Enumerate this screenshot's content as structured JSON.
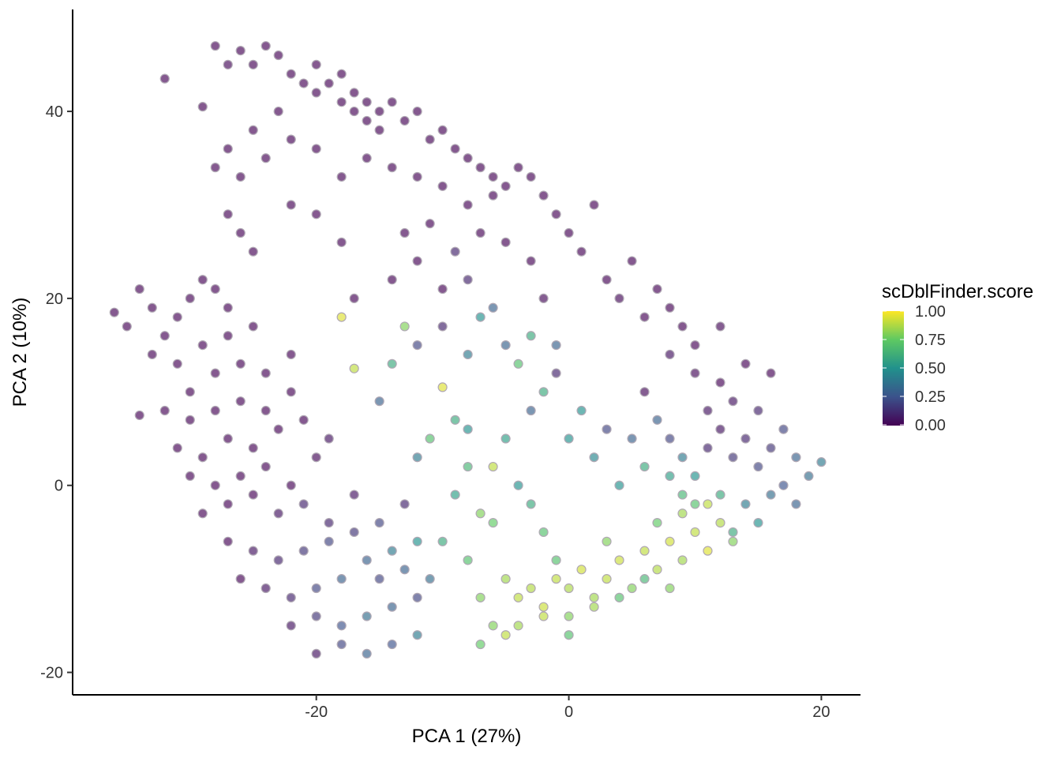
{
  "chart_data": {
    "type": "scatter",
    "xlabel": "PCA 1 (27%)",
    "ylabel": "PCA 2 (10%)",
    "xlim": [
      -39.3,
      23.1
    ],
    "ylim": [
      -22.4,
      50.9
    ],
    "x_ticks": [
      "-20",
      "0",
      "20"
    ],
    "x_tick_values": [
      -20,
      0,
      20
    ],
    "y_ticks": [
      "-20",
      "0",
      "20",
      "40"
    ],
    "y_tick_values": [
      -20,
      0,
      20,
      40
    ],
    "grid": false,
    "color_scale": "viridis",
    "legend": {
      "title": "scDblFinder.score",
      "placement": "right",
      "ticks": [
        "0.00",
        "0.25",
        "0.50",
        "0.75",
        "1.00"
      ],
      "tick_values": [
        0,
        0.25,
        0.5,
        0.75,
        1
      ],
      "range": [
        0,
        1
      ]
    },
    "point_fields": [
      "pca1",
      "pca2",
      "scDblFinder.score"
    ],
    "points": [
      [
        -32,
        43.5,
        0
      ],
      [
        -29,
        40.5,
        0
      ],
      [
        -28,
        47,
        0
      ],
      [
        -27,
        45,
        0.02
      ],
      [
        -26,
        46.5,
        0
      ],
      [
        -25,
        45,
        0
      ],
      [
        -24,
        47,
        0
      ],
      [
        -23,
        46,
        0
      ],
      [
        -22,
        44,
        0
      ],
      [
        -21,
        43,
        0
      ],
      [
        -20,
        45,
        0
      ],
      [
        -20,
        42,
        0
      ],
      [
        -19,
        43,
        0
      ],
      [
        -18,
        44,
        0
      ],
      [
        -18,
        41,
        0
      ],
      [
        -17,
        42,
        0
      ],
      [
        -17,
        40,
        0
      ],
      [
        -16,
        41,
        0
      ],
      [
        -16,
        39,
        0
      ],
      [
        -15,
        40,
        0
      ],
      [
        -14,
        41,
        0
      ],
      [
        -15,
        38,
        0
      ],
      [
        -13,
        39,
        0
      ],
      [
        -12,
        40,
        0
      ],
      [
        -11,
        37,
        0
      ],
      [
        -10,
        38,
        0
      ],
      [
        -9,
        36,
        0
      ],
      [
        -8,
        35,
        0
      ],
      [
        -7,
        34,
        0
      ],
      [
        -6,
        33,
        0
      ],
      [
        -5,
        32,
        0
      ],
      [
        -4,
        34,
        0
      ],
      [
        -3,
        33,
        0
      ],
      [
        -2,
        31,
        0
      ],
      [
        -1,
        29,
        0
      ],
      [
        0,
        27,
        0
      ],
      [
        1,
        25,
        0
      ],
      [
        2,
        30,
        0
      ],
      [
        -23,
        40,
        0
      ],
      [
        -25,
        38,
        0
      ],
      [
        -27,
        36,
        0
      ],
      [
        -28,
        34,
        0
      ],
      [
        -26,
        33,
        0
      ],
      [
        -24,
        35,
        0
      ],
      [
        -22,
        37,
        0
      ],
      [
        -20,
        36,
        0
      ],
      [
        -18,
        33,
        0
      ],
      [
        -16,
        35,
        0
      ],
      [
        -14,
        34,
        0
      ],
      [
        -12,
        33,
        0
      ],
      [
        -10,
        32,
        0
      ],
      [
        -8,
        30,
        0
      ],
      [
        -6,
        31,
        0
      ],
      [
        -27,
        29,
        0
      ],
      [
        -26,
        27,
        0
      ],
      [
        -25,
        25,
        0
      ],
      [
        -22,
        30,
        0
      ],
      [
        -20,
        29,
        0
      ],
      [
        -18,
        26,
        0
      ],
      [
        -13,
        27,
        0
      ],
      [
        -11,
        28,
        0
      ],
      [
        -9,
        25,
        0.1
      ],
      [
        -7,
        27,
        0
      ],
      [
        -5,
        26,
        0
      ],
      [
        -3,
        24,
        0
      ],
      [
        -14,
        22,
        0
      ],
      [
        -12,
        24,
        0
      ],
      [
        -17,
        20,
        0
      ],
      [
        -10,
        21,
        0
      ],
      [
        3,
        22,
        0
      ],
      [
        5,
        24,
        0
      ],
      [
        7,
        21,
        0
      ],
      [
        8,
        19,
        0
      ],
      [
        6,
        18,
        0
      ],
      [
        9,
        17,
        0
      ],
      [
        4,
        20,
        0.02
      ],
      [
        -2,
        20,
        0.02
      ],
      [
        -8,
        22,
        0.1
      ],
      [
        -6,
        19,
        0.3
      ],
      [
        -36,
        18.5,
        0
      ],
      [
        -35,
        17,
        0
      ],
      [
        -34,
        21,
        0
      ],
      [
        -33,
        19,
        0
      ],
      [
        -32,
        16,
        0
      ],
      [
        -31,
        18,
        0
      ],
      [
        -30,
        20,
        0
      ],
      [
        -29,
        22,
        0
      ],
      [
        -28,
        21,
        0
      ],
      [
        -27,
        19,
        0
      ],
      [
        -33,
        14,
        0
      ],
      [
        -31,
        13,
        0
      ],
      [
        -29,
        15,
        0
      ],
      [
        -27,
        16,
        0
      ],
      [
        -25,
        17,
        0
      ],
      [
        -30,
        10,
        0
      ],
      [
        -28,
        12,
        0
      ],
      [
        -26,
        13,
        0
      ],
      [
        -24,
        12,
        0
      ],
      [
        -22,
        14,
        0
      ],
      [
        -32,
        8,
        0
      ],
      [
        -30,
        7,
        0
      ],
      [
        -28,
        8,
        0
      ],
      [
        -26,
        9,
        0
      ],
      [
        -24,
        8,
        0
      ],
      [
        -22,
        10,
        0
      ],
      [
        -34,
        7.5,
        0
      ],
      [
        -31,
        4,
        0
      ],
      [
        -29,
        3,
        0
      ],
      [
        -27,
        5,
        0
      ],
      [
        -25,
        4,
        0
      ],
      [
        -23,
        6,
        0
      ],
      [
        -21,
        7,
        0
      ],
      [
        -30,
        1,
        0
      ],
      [
        -28,
        0,
        0
      ],
      [
        -26,
        1,
        0
      ],
      [
        -24,
        2,
        0
      ],
      [
        -22,
        0,
        0
      ],
      [
        -29,
        -3,
        0
      ],
      [
        -27,
        -2,
        0
      ],
      [
        -25,
        -1,
        0
      ],
      [
        -23,
        -3,
        0.05
      ],
      [
        -20,
        3,
        0.02
      ],
      [
        -19,
        5,
        0.05
      ],
      [
        -21,
        -2,
        0.1
      ],
      [
        -27,
        -6,
        0
      ],
      [
        -25,
        -7,
        0.05
      ],
      [
        -23,
        -8,
        0.1
      ],
      [
        -21,
        -7,
        0.15
      ],
      [
        -19,
        -6,
        0.2
      ],
      [
        -26,
        -10,
        0
      ],
      [
        -24,
        -11,
        0.05
      ],
      [
        -22,
        -12,
        0.1
      ],
      [
        -20,
        -11,
        0.2
      ],
      [
        -18,
        -10,
        0.3
      ],
      [
        -22,
        -15,
        0.05
      ],
      [
        -20,
        -14,
        0.15
      ],
      [
        -18,
        -15,
        0.25
      ],
      [
        -16,
        -14,
        0.35
      ],
      [
        -14,
        -13,
        0.3
      ],
      [
        -12,
        -12,
        0.2
      ],
      [
        -20,
        -18,
        0.05
      ],
      [
        -18,
        -17,
        0.2
      ],
      [
        -16,
        -18,
        0.3
      ],
      [
        -14,
        -17,
        0.25
      ],
      [
        -12,
        -16,
        0.4
      ],
      [
        -15,
        -10,
        0.2
      ],
      [
        -13,
        -9,
        0.3
      ],
      [
        -11,
        -10,
        0.35
      ],
      [
        -17,
        -5,
        0.15
      ],
      [
        -15,
        -4,
        0.2
      ],
      [
        -13,
        -2,
        0.1
      ],
      [
        -17,
        -1,
        0.05
      ],
      [
        -19,
        -4,
        0.1
      ],
      [
        -16,
        -8,
        0.3
      ],
      [
        -14,
        -7,
        0.4
      ],
      [
        -12,
        -6,
        0.5
      ],
      [
        -10,
        10.5,
        0.95
      ],
      [
        -9,
        7,
        0.6
      ],
      [
        -8,
        6,
        0.5
      ],
      [
        -11,
        5,
        0.7
      ],
      [
        -12,
        3,
        0.4
      ],
      [
        -8,
        2,
        0.65
      ],
      [
        -7,
        -3,
        0.8
      ],
      [
        -6,
        -4,
        0.75
      ],
      [
        -9,
        -1,
        0.55
      ],
      [
        -10,
        -6,
        0.6
      ],
      [
        -8,
        -8,
        0.7
      ],
      [
        -7,
        -12,
        0.8
      ],
      [
        -6,
        2,
        0.9
      ],
      [
        -5,
        5,
        0.55
      ],
      [
        -3,
        8,
        0.3
      ],
      [
        -2,
        10,
        0.6
      ],
      [
        -1,
        12,
        0.1
      ],
      [
        -4,
        13,
        0.7
      ],
      [
        -4,
        0,
        0.5
      ],
      [
        -3,
        -2,
        0.6
      ],
      [
        -2,
        -5,
        0.7
      ],
      [
        0,
        5,
        0.5
      ],
      [
        1,
        8,
        0.5
      ],
      [
        2,
        3,
        0.45
      ],
      [
        3,
        6,
        0.2
      ],
      [
        4,
        0,
        0.5
      ],
      [
        5,
        5,
        0.3
      ],
      [
        6,
        2,
        0.6
      ],
      [
        -12,
        15,
        0.2
      ],
      [
        -14,
        13,
        0.6
      ],
      [
        -15,
        9,
        0.3
      ],
      [
        -10,
        17,
        0.1
      ],
      [
        -7,
        18,
        0.5
      ],
      [
        -5,
        15,
        0.3
      ],
      [
        -3,
        16,
        0.6
      ],
      [
        -1,
        15,
        0.3
      ],
      [
        -18,
        18,
        0.95
      ],
      [
        -17,
        12.5,
        0.9
      ],
      [
        -13,
        17,
        0.8
      ],
      [
        -8,
        14,
        0.4
      ],
      [
        -5,
        -10,
        0.85
      ],
      [
        -4,
        -12,
        0.9
      ],
      [
        -3,
        -11,
        0.88
      ],
      [
        -2,
        -13,
        0.92
      ],
      [
        -1,
        -10,
        0.9
      ],
      [
        0,
        -11,
        0.87
      ],
      [
        1,
        -9,
        0.93
      ],
      [
        2,
        -12,
        0.85
      ],
      [
        3,
        -10,
        0.9
      ],
      [
        4,
        -8,
        0.92
      ],
      [
        5,
        -11,
        0.8
      ],
      [
        6,
        -7,
        0.9
      ],
      [
        7,
        -9,
        0.88
      ],
      [
        8,
        -6,
        0.93
      ],
      [
        9,
        -8,
        0.85
      ],
      [
        10,
        -5,
        0.9
      ],
      [
        11,
        -7,
        0.95
      ],
      [
        12,
        -4,
        0.88
      ],
      [
        13,
        -6,
        0.8
      ],
      [
        -6,
        -15,
        0.8
      ],
      [
        -4,
        -15,
        0.85
      ],
      [
        -2,
        -14,
        0.9
      ],
      [
        0,
        -14,
        0.8
      ],
      [
        2,
        -13,
        0.85
      ],
      [
        4,
        -12,
        0.7
      ],
      [
        6,
        -10,
        0.65
      ],
      [
        8,
        -11,
        0.8
      ],
      [
        -7,
        -17,
        0.75
      ],
      [
        -5,
        -16,
        0.9
      ],
      [
        -1,
        -8,
        0.7
      ],
      [
        3,
        -6,
        0.8
      ],
      [
        7,
        -4,
        0.75
      ],
      [
        9,
        -3,
        0.85
      ],
      [
        11,
        -2,
        0.9
      ],
      [
        0,
        -16,
        0.7
      ],
      [
        8,
        5,
        0.2
      ],
      [
        9,
        3,
        0.4
      ],
      [
        10,
        1,
        0.5
      ],
      [
        11,
        4,
        0.1
      ],
      [
        12,
        6,
        0.05
      ],
      [
        13,
        3,
        0.15
      ],
      [
        14,
        5,
        0.1
      ],
      [
        15,
        2,
        0.2
      ],
      [
        16,
        4,
        0.15
      ],
      [
        17,
        6,
        0.2
      ],
      [
        18,
        3,
        0.3
      ],
      [
        19,
        1,
        0.35
      ],
      [
        20,
        2.5,
        0.4
      ],
      [
        15,
        8,
        0.1
      ],
      [
        13,
        9,
        0.05
      ],
      [
        11,
        8,
        0.05
      ],
      [
        10,
        -2,
        0.7
      ],
      [
        12,
        -1,
        0.6
      ],
      [
        14,
        -2,
        0.4
      ],
      [
        16,
        -1,
        0.35
      ],
      [
        18,
        -2,
        0.3
      ],
      [
        17,
        0,
        0.25
      ],
      [
        15,
        -4,
        0.5
      ],
      [
        13,
        -5,
        0.6
      ],
      [
        9,
        -1,
        0.65
      ],
      [
        8,
        1,
        0.55
      ],
      [
        12,
        11,
        0
      ],
      [
        14,
        13,
        0
      ],
      [
        16,
        12,
        0
      ],
      [
        10,
        12,
        0.02
      ],
      [
        8,
        14,
        0.05
      ],
      [
        6,
        10,
        0.02
      ],
      [
        10,
        15,
        0
      ],
      [
        12,
        17,
        0.02
      ],
      [
        7,
        7,
        0.3
      ]
    ]
  }
}
